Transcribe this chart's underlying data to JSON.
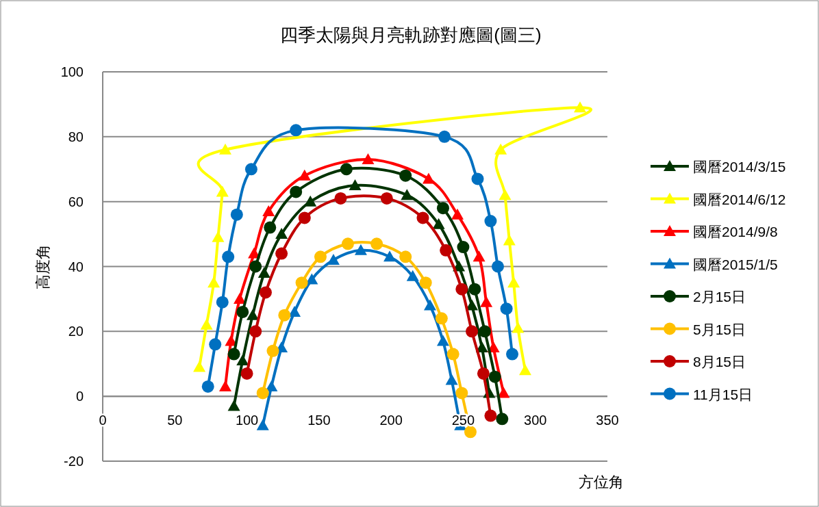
{
  "chart_data": {
    "type": "line",
    "title": "四季太陽與月亮軌跡對應圖(圖三)",
    "xlabel": "方位角",
    "ylabel": "高度角",
    "xlim": [
      0,
      350
    ],
    "xticks": [
      0,
      50,
      100,
      150,
      200,
      250,
      300,
      350
    ],
    "ylim": [
      -20,
      100
    ],
    "yticks": [
      -20,
      0,
      20,
      40,
      60,
      80,
      100
    ],
    "grid": "y",
    "legend": "right",
    "series": [
      {
        "name": "國曆2014/3/15",
        "color": "#003300",
        "marker": "triangle",
        "x": [
          91,
          97,
          104,
          112,
          124,
          144,
          175,
          211,
          233,
          247,
          256,
          263,
          268
        ],
        "values": [
          -3,
          11,
          25,
          38,
          50,
          60,
          65,
          62,
          53,
          40,
          28,
          15,
          1
        ]
      },
      {
        "name": "國曆2014/6/12",
        "color": "#ffff00",
        "marker": "triangle",
        "x": [
          67,
          72,
          77,
          80,
          83,
          85,
          331,
          276,
          279,
          282,
          285,
          288,
          293
        ],
        "values": [
          9,
          22,
          35,
          49,
          63,
          76,
          89,
          76,
          62,
          48,
          35,
          21,
          8
        ]
      },
      {
        "name": "國曆2014/9/8",
        "color": "#ff0000",
        "marker": "triangle",
        "x": [
          85,
          89,
          95,
          105,
          115,
          140,
          184,
          226,
          246,
          261,
          266,
          271,
          278
        ],
        "values": [
          3,
          17,
          30,
          44,
          57,
          68,
          73,
          67,
          56,
          43,
          29,
          15,
          1
        ]
      },
      {
        "name": "國曆2015/1/5",
        "color": "#0070c0",
        "marker": "triangle",
        "x": [
          111,
          117,
          124,
          133,
          145,
          160,
          179,
          199,
          215,
          227,
          236,
          242,
          248
        ],
        "values": [
          -9,
          3,
          15,
          26,
          36,
          42,
          45,
          43,
          37,
          28,
          17,
          5,
          -9
        ]
      },
      {
        "name": "2月15日",
        "color": "#003300",
        "marker": "circle",
        "x": [
          91,
          97,
          106,
          116,
          134,
          169,
          210,
          236,
          250,
          258,
          265,
          272,
          277
        ],
        "values": [
          13,
          26,
          40,
          52,
          63,
          70,
          68,
          58,
          46,
          33,
          20,
          6,
          -7
        ]
      },
      {
        "name": "5月15日",
        "color": "#ffc000",
        "marker": "circle",
        "x": [
          111,
          118,
          126,
          138,
          151,
          170,
          190,
          210,
          224,
          235,
          243,
          249,
          255
        ],
        "values": [
          1,
          14,
          25,
          35,
          43,
          47,
          47,
          43,
          35,
          24,
          13,
          1,
          -11
        ]
      },
      {
        "name": "8月15日",
        "color": "#c00000",
        "marker": "circle",
        "x": [
          100,
          106,
          113,
          124,
          140,
          165,
          197,
          222,
          238,
          249,
          256,
          264,
          269
        ],
        "values": [
          7,
          20,
          32,
          44,
          55,
          61,
          61,
          55,
          45,
          33,
          20,
          7,
          -6
        ]
      },
      {
        "name": "11月15日",
        "color": "#0070c0",
        "marker": "circle",
        "x": [
          73,
          78,
          83,
          87,
          93,
          103,
          134,
          237,
          260,
          269,
          274,
          280,
          284
        ],
        "values": [
          3,
          16,
          29,
          43,
          56,
          70,
          82,
          80,
          67,
          54,
          40,
          27,
          13
        ]
      }
    ]
  }
}
